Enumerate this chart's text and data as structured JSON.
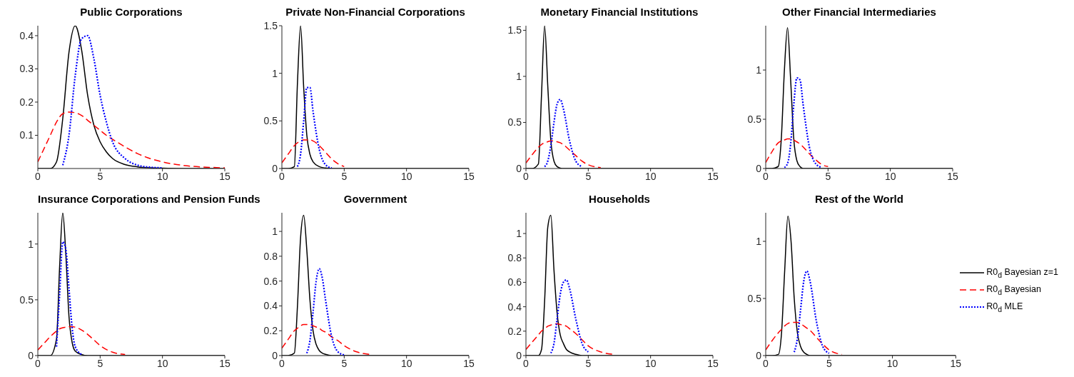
{
  "chart_data": [
    {
      "type": "line",
      "title": "Public Corporations",
      "x": [
        0,
        1,
        1.5,
        2,
        2.5,
        3,
        3.5,
        4,
        4.5,
        5,
        5.5,
        6,
        7,
        8,
        9,
        10,
        12,
        15
      ],
      "xlim": [
        0,
        15
      ],
      "xticks": [
        0,
        5,
        10,
        15
      ],
      "ylim": [
        0,
        0.43
      ],
      "yticks": [
        0.1,
        0.2,
        0.3,
        0.4
      ],
      "series": [
        {
          "color": "#000000",
          "line_style": "solid",
          "values": [
            0,
            0,
            0.02,
            0.15,
            0.35,
            0.43,
            0.36,
            0.22,
            0.13,
            0.08,
            0.05,
            0.03,
            0.012,
            0.005,
            0.002,
            0.001,
            0,
            0
          ]
        },
        {
          "color": "#ff0000",
          "line_style": "dashed",
          "values": [
            0.02,
            0.1,
            0.14,
            0.165,
            0.17,
            0.168,
            0.16,
            0.145,
            0.13,
            0.115,
            0.1,
            0.088,
            0.065,
            0.045,
            0.03,
            0.02,
            0.008,
            0.002
          ]
        },
        {
          "color": "#0000ff",
          "line_style": "dotted",
          "values": [
            null,
            null,
            null,
            0.01,
            0.1,
            0.28,
            0.39,
            0.4,
            0.33,
            0.22,
            0.14,
            0.08,
            0.03,
            0.01,
            0.004,
            0.002,
            null,
            null
          ]
        }
      ]
    },
    {
      "type": "line",
      "title": "Private Non-Financial Corporations",
      "x": [
        0,
        0.5,
        1,
        1.25,
        1.5,
        1.75,
        2,
        2.25,
        2.5,
        3,
        3.5,
        4,
        4.5,
        5,
        6,
        8,
        10,
        15
      ],
      "xlim": [
        0,
        15
      ],
      "xticks": [
        0,
        5,
        10,
        15
      ],
      "ylim": [
        0,
        1.5
      ],
      "yticks": [
        0,
        0.5,
        1,
        1.5
      ],
      "series": [
        {
          "color": "#000000",
          "line_style": "solid",
          "values": [
            0,
            0,
            0.02,
            0.9,
            1.5,
            0.85,
            0.35,
            0.15,
            0.07,
            0.02,
            0.005,
            0,
            0,
            0,
            0,
            0,
            0,
            0
          ]
        },
        {
          "color": "#ff0000",
          "line_style": "dashed",
          "values": [
            0.06,
            0.15,
            0.24,
            0.27,
            0.29,
            0.3,
            0.3,
            0.3,
            0.29,
            0.24,
            0.17,
            0.1,
            0.05,
            0.02,
            null,
            null,
            null,
            null
          ]
        },
        {
          "color": "#0000ff",
          "line_style": "dotted",
          "values": [
            null,
            null,
            null,
            0.02,
            0.15,
            0.5,
            0.85,
            0.85,
            0.6,
            0.2,
            0.04,
            0.005,
            null,
            null,
            null,
            null,
            null,
            null
          ]
        }
      ]
    },
    {
      "type": "line",
      "title": "Monetary Financial Institutions",
      "x": [
        0,
        0.5,
        1,
        1.25,
        1.5,
        1.75,
        2,
        2.25,
        2.5,
        2.75,
        3,
        3.5,
        4,
        4.5,
        5,
        6,
        8,
        10,
        15
      ],
      "xlim": [
        0,
        15
      ],
      "xticks": [
        0,
        5,
        10,
        15
      ],
      "ylim": [
        0,
        1.55
      ],
      "yticks": [
        0,
        0.5,
        1,
        1.5
      ],
      "series": [
        {
          "color": "#000000",
          "line_style": "solid",
          "values": [
            0,
            0,
            0.05,
            0.8,
            1.55,
            0.9,
            0.3,
            0.08,
            0.02,
            0.005,
            0,
            0,
            0,
            0,
            0,
            0,
            0,
            0,
            0
          ]
        },
        {
          "color": "#ff0000",
          "line_style": "dashed",
          "values": [
            0.06,
            0.15,
            0.23,
            0.26,
            0.28,
            0.29,
            0.3,
            0.3,
            0.29,
            0.28,
            0.26,
            0.2,
            0.14,
            0.08,
            0.04,
            0.01,
            null,
            null,
            null
          ]
        },
        {
          "color": "#0000ff",
          "line_style": "dotted",
          "values": [
            null,
            null,
            null,
            null,
            0.02,
            0.08,
            0.25,
            0.5,
            0.7,
            0.75,
            0.65,
            0.3,
            0.08,
            0.02,
            null,
            null,
            null,
            null,
            null
          ]
        }
      ]
    },
    {
      "type": "line",
      "title": "Other Financial Intermediaries",
      "x": [
        0,
        0.5,
        1,
        1.25,
        1.5,
        1.75,
        2,
        2.25,
        2.5,
        2.75,
        3,
        3.5,
        4,
        4.5,
        5,
        6,
        8,
        10,
        15
      ],
      "xlim": [
        0,
        15
      ],
      "xticks": [
        0,
        5,
        10,
        15
      ],
      "ylim": [
        0,
        1.45
      ],
      "yticks": [
        0,
        0.5,
        1
      ],
      "series": [
        {
          "color": "#000000",
          "line_style": "solid",
          "values": [
            0,
            0,
            0.02,
            0.3,
            1.0,
            1.43,
            0.9,
            0.3,
            0.08,
            0.02,
            0,
            0,
            0,
            0,
            0,
            0,
            0,
            0,
            0
          ]
        },
        {
          "color": "#ff0000",
          "line_style": "dashed",
          "values": [
            0.06,
            0.17,
            0.26,
            0.28,
            0.29,
            0.3,
            0.3,
            0.29,
            0.27,
            0.25,
            0.22,
            0.15,
            0.09,
            0.04,
            0.02,
            null,
            null,
            null,
            null
          ]
        },
        {
          "color": "#0000ff",
          "line_style": "dotted",
          "values": [
            null,
            null,
            null,
            null,
            0.01,
            0.05,
            0.25,
            0.65,
            0.92,
            0.9,
            0.65,
            0.22,
            0.05,
            0.01,
            null,
            null,
            null,
            null,
            null
          ]
        }
      ]
    },
    {
      "type": "line",
      "title": "Insurance Corporations and Pension Funds",
      "x": [
        0,
        0.5,
        1,
        1.5,
        1.75,
        2,
        2.25,
        2.5,
        2.75,
        3,
        3.5,
        4,
        4.5,
        5,
        6,
        7,
        8,
        10,
        15
      ],
      "xlim": [
        0,
        15
      ],
      "xticks": [
        0,
        5,
        10,
        15
      ],
      "ylim": [
        0,
        1.28
      ],
      "yticks": [
        0,
        0.5,
        1
      ],
      "series": [
        {
          "color": "#000000",
          "line_style": "solid",
          "values": [
            0,
            0,
            0,
            0.15,
            0.8,
            1.28,
            0.9,
            0.35,
            0.12,
            0.04,
            0.01,
            0,
            0,
            0,
            0,
            0,
            0,
            0,
            0
          ]
        },
        {
          "color": "#ff0000",
          "line_style": "dashed",
          "values": [
            0.05,
            0.11,
            0.17,
            0.22,
            0.24,
            0.25,
            0.255,
            0.26,
            0.26,
            0.255,
            0.23,
            0.19,
            0.14,
            0.09,
            0.03,
            0.01,
            null,
            null,
            null
          ]
        },
        {
          "color": "#0000ff",
          "line_style": "dotted",
          "values": [
            null,
            null,
            null,
            0.08,
            0.55,
            1.02,
            0.95,
            0.6,
            0.25,
            0.08,
            0.01,
            null,
            null,
            null,
            null,
            null,
            null,
            null,
            null
          ]
        }
      ]
    },
    {
      "type": "line",
      "title": "Government",
      "x": [
        0,
        0.5,
        1,
        1.25,
        1.5,
        1.75,
        2,
        2.25,
        2.5,
        2.75,
        3,
        3.25,
        3.5,
        4,
        4.5,
        5,
        6,
        7,
        8,
        10,
        15
      ],
      "xlim": [
        0,
        15
      ],
      "xticks": [
        0,
        5,
        10,
        15
      ],
      "ylim": [
        0,
        1.15
      ],
      "yticks": [
        0,
        0.2,
        0.4,
        0.6,
        0.8,
        1
      ],
      "series": [
        {
          "color": "#000000",
          "line_style": "solid",
          "values": [
            0,
            0,
            0.02,
            0.4,
            0.95,
            1.13,
            0.85,
            0.45,
            0.2,
            0.09,
            0.04,
            0.02,
            0.01,
            0,
            0,
            0,
            0,
            0,
            0,
            0,
            0
          ]
        },
        {
          "color": "#ff0000",
          "line_style": "dashed",
          "values": [
            0.06,
            0.13,
            0.2,
            0.22,
            0.24,
            0.25,
            0.25,
            0.25,
            0.24,
            0.23,
            0.22,
            0.2,
            0.19,
            0.15,
            0.12,
            0.08,
            0.03,
            0.01,
            null,
            null,
            null
          ]
        },
        {
          "color": "#0000ff",
          "line_style": "dotted",
          "values": [
            null,
            null,
            null,
            null,
            null,
            null,
            0.02,
            0.12,
            0.35,
            0.6,
            0.7,
            0.62,
            0.45,
            0.15,
            0.03,
            0.005,
            null,
            null,
            null,
            null,
            null
          ]
        }
      ]
    },
    {
      "type": "line",
      "title": "Households",
      "x": [
        0,
        0.5,
        1,
        1.25,
        1.5,
        1.75,
        2,
        2.25,
        2.5,
        2.75,
        3,
        3.25,
        3.5,
        4,
        4.5,
        5,
        6,
        7,
        8,
        10,
        15
      ],
      "xlim": [
        0,
        15
      ],
      "xticks": [
        0,
        5,
        10,
        15
      ],
      "ylim": [
        0,
        1.17
      ],
      "yticks": [
        0,
        0.2,
        0.4,
        0.6,
        0.8,
        1
      ],
      "series": [
        {
          "color": "#000000",
          "line_style": "solid",
          "values": [
            0,
            0,
            0,
            0.05,
            0.45,
            1.05,
            1.15,
            0.7,
            0.35,
            0.17,
            0.1,
            0.05,
            0.03,
            0.01,
            0,
            0,
            0,
            0,
            0,
            0,
            0
          ]
        },
        {
          "color": "#ff0000",
          "line_style": "dashed",
          "values": [
            0.05,
            0.11,
            0.17,
            0.2,
            0.22,
            0.24,
            0.25,
            0.26,
            0.26,
            0.255,
            0.25,
            0.24,
            0.22,
            0.18,
            0.13,
            0.08,
            0.03,
            0.01,
            null,
            null,
            null
          ]
        },
        {
          "color": "#0000ff",
          "line_style": "dotted",
          "values": [
            null,
            null,
            null,
            null,
            null,
            null,
            0.02,
            0.1,
            0.3,
            0.5,
            0.6,
            0.62,
            0.55,
            0.3,
            0.1,
            0.03,
            null,
            null,
            null,
            null,
            null
          ]
        }
      ]
    },
    {
      "type": "line",
      "title": "Rest of the World",
      "x": [
        0,
        0.5,
        1,
        1.25,
        1.5,
        1.75,
        2,
        2.25,
        2.5,
        2.75,
        3,
        3.25,
        3.5,
        4,
        4.5,
        5,
        6,
        8,
        10,
        15
      ],
      "xlim": [
        0,
        15
      ],
      "xticks": [
        0,
        5,
        10,
        15
      ],
      "ylim": [
        0,
        1.25
      ],
      "yticks": [
        0,
        0.5,
        1
      ],
      "legend": "right",
      "series": [
        {
          "name": "R0$_{d}$ Bayesian z=1",
          "color": "#000000",
          "line_style": "solid",
          "values": [
            0,
            0,
            0.01,
            0.2,
            0.75,
            1.22,
            1.0,
            0.5,
            0.2,
            0.08,
            0.03,
            0.01,
            0,
            0,
            0,
            0,
            0,
            0,
            0,
            0
          ]
        },
        {
          "name": "R0$_{d}$ Bayesian",
          "color": "#ff0000",
          "line_style": "dashed",
          "values": [
            0.05,
            0.13,
            0.2,
            0.23,
            0.26,
            0.28,
            0.29,
            0.29,
            0.29,
            0.28,
            0.26,
            0.24,
            0.22,
            0.16,
            0.1,
            0.05,
            0.01,
            null,
            null,
            null
          ]
        },
        {
          "name": "R0$_{d}$ MLE",
          "color": "#0000ff",
          "line_style": "dotted",
          "values": [
            null,
            null,
            null,
            null,
            null,
            null,
            null,
            0.03,
            0.15,
            0.4,
            0.65,
            0.74,
            0.65,
            0.3,
            0.08,
            0.02,
            null,
            null,
            null,
            null
          ]
        }
      ]
    }
  ]
}
